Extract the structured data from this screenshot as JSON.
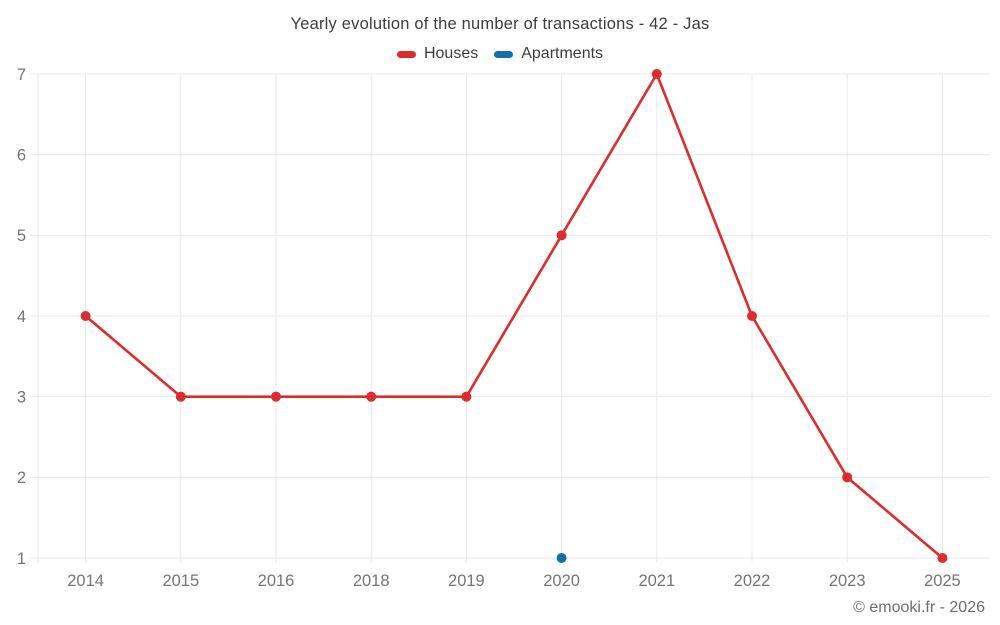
{
  "header": {
    "title": "Yearly evolution of the number of transactions - 42 - Jas"
  },
  "legend": {
    "items": [
      {
        "label": "Houses",
        "color": "#dd2c2e"
      },
      {
        "label": "Apartments",
        "color": "#1272a8"
      }
    ]
  },
  "footer": {
    "copyright": "© emooki.fr - 2026"
  },
  "chart_data": {
    "type": "line",
    "title": "Yearly evolution of the number of transactions - 42 - Jas",
    "categories": [
      "2014",
      "2015",
      "2016",
      "2018",
      "2019",
      "2020",
      "2021",
      "2022",
      "2023",
      "2025"
    ],
    "series": [
      {
        "name": "Houses",
        "color": "#dd2c2e",
        "values": [
          4,
          3,
          3,
          3,
          3,
          5,
          7,
          4,
          2,
          1
        ]
      },
      {
        "name": "Apartments",
        "color": "#1272a8",
        "values": [
          null,
          null,
          null,
          null,
          null,
          1,
          null,
          null,
          null,
          null
        ]
      }
    ],
    "xlabel": "",
    "ylabel": "",
    "ylim": [
      1,
      7
    ],
    "yticks": [
      1,
      2,
      3,
      4,
      5,
      6,
      7
    ],
    "grid": true,
    "legend_position": "top",
    "colors": {
      "grid": "#e8e8e8",
      "tick_text": "#757575",
      "title_text": "#3d3d3d",
      "copyright_text": "#6e6e6e",
      "background": "#ffffff"
    }
  }
}
